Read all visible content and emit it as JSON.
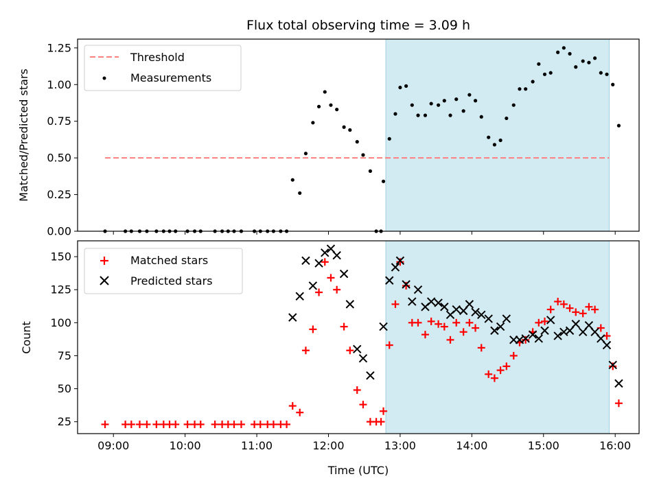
{
  "chart_data": {
    "type": "scatter",
    "title": "Flux total observing time = 3.09 h",
    "xlabel": "Time (UTC)",
    "xlim": [
      "08:30",
      "16:20"
    ],
    "x_ticks": [
      "09:00",
      "10:00",
      "11:00",
      "12:00",
      "13:00",
      "14:00",
      "15:00",
      "16:00"
    ],
    "shaded_region": {
      "start": "12:48",
      "end": "15:55",
      "color": "#add8e6"
    },
    "panels": [
      {
        "id": "ratio",
        "ylabel": "Matched/Predicted stars",
        "ylim": [
          0,
          1.31
        ],
        "y_ticks": [
          "0.00",
          "0.25",
          "0.50",
          "0.75",
          "1.00",
          "1.25"
        ],
        "y_tick_values": [
          0,
          0.25,
          0.5,
          0.75,
          1.0,
          1.25
        ],
        "legend_position": "upper-left",
        "threshold": {
          "name": "Threshold",
          "value": 0.5,
          "x_start": "08:53",
          "x_end": "15:55",
          "color": "#ff7f7f"
        },
        "series": [
          {
            "name": "Measurements",
            "color": "#000000",
            "marker": "dot",
            "points": [
              [
                "08:53",
                0
              ],
              [
                "09:10",
                0
              ],
              [
                "09:15",
                0
              ],
              [
                "09:22",
                0
              ],
              [
                "09:28",
                0
              ],
              [
                "09:36",
                0
              ],
              [
                "09:42",
                0
              ],
              [
                "09:47",
                0
              ],
              [
                "09:52",
                0
              ],
              [
                "10:02",
                0
              ],
              [
                "10:08",
                0
              ],
              [
                "10:13",
                0
              ],
              [
                "10:25",
                0
              ],
              [
                "10:31",
                0
              ],
              [
                "10:36",
                0
              ],
              [
                "10:41",
                0
              ],
              [
                "10:47",
                0
              ],
              [
                "10:58",
                0
              ],
              [
                "11:03",
                0
              ],
              [
                "11:09",
                0
              ],
              [
                "11:14",
                0
              ],
              [
                "11:20",
                0
              ],
              [
                "11:25",
                0
              ],
              [
                "11:30",
                0.35
              ],
              [
                "11:36",
                0.26
              ],
              [
                "11:41",
                0.53
              ],
              [
                "11:47",
                0.74
              ],
              [
                "11:52",
                0.85
              ],
              [
                "11:57",
                0.95
              ],
              [
                "12:02",
                0.86
              ],
              [
                "12:07",
                0.83
              ],
              [
                "12:13",
                0.71
              ],
              [
                "12:18",
                0.69
              ],
              [
                "12:24",
                0.61
              ],
              [
                "12:29",
                0.52
              ],
              [
                "12:35",
                0.41
              ],
              [
                "12:40",
                0
              ],
              [
                "12:44",
                0
              ],
              [
                "12:46",
                0.34
              ],
              [
                "12:51",
                0.63
              ],
              [
                "12:56",
                0.8
              ],
              [
                "13:00",
                0.98
              ],
              [
                "13:05",
                0.99
              ],
              [
                "13:10",
                0.86
              ],
              [
                "13:15",
                0.79
              ],
              [
                "13:21",
                0.79
              ],
              [
                "13:26",
                0.87
              ],
              [
                "13:32",
                0.86
              ],
              [
                "13:37",
                0.89
              ],
              [
                "13:42",
                0.79
              ],
              [
                "13:47",
                0.9
              ],
              [
                "13:53",
                0.82
              ],
              [
                "13:58",
                0.93
              ],
              [
                "14:03",
                0.89
              ],
              [
                "14:08",
                0.78
              ],
              [
                "14:14",
                0.64
              ],
              [
                "14:19",
                0.59
              ],
              [
                "14:24",
                0.62
              ],
              [
                "14:29",
                0.77
              ],
              [
                "14:35",
                0.86
              ],
              [
                "14:40",
                0.97
              ],
              [
                "14:45",
                0.97
              ],
              [
                "14:51",
                1.02
              ],
              [
                "14:56",
                1.14
              ],
              [
                "15:01",
                1.07
              ],
              [
                "15:06",
                1.08
              ],
              [
                "15:12",
                1.22
              ],
              [
                "15:17",
                1.25
              ],
              [
                "15:22",
                1.21
              ],
              [
                "15:27",
                1.12
              ],
              [
                "15:33",
                1.16
              ],
              [
                "15:38",
                1.15
              ],
              [
                "15:43",
                1.18
              ],
              [
                "15:48",
                1.08
              ],
              [
                "15:53",
                1.07
              ],
              [
                "15:58",
                1.0
              ],
              [
                "16:03",
                0.72
              ]
            ]
          }
        ]
      },
      {
        "id": "counts",
        "ylabel": "Count",
        "ylim": [
          16,
          162
        ],
        "y_ticks": [
          "25",
          "50",
          "75",
          "100",
          "125",
          "150"
        ],
        "y_tick_values": [
          25,
          50,
          75,
          100,
          125,
          150
        ],
        "legend_position": "upper-left",
        "series": [
          {
            "name": "Matched stars",
            "color": "#ff0000",
            "marker": "plus",
            "points": [
              [
                "08:53",
                23
              ],
              [
                "09:10",
                23
              ],
              [
                "09:15",
                23
              ],
              [
                "09:22",
                23
              ],
              [
                "09:28",
                23
              ],
              [
                "09:36",
                23
              ],
              [
                "09:42",
                23
              ],
              [
                "09:47",
                23
              ],
              [
                "09:52",
                23
              ],
              [
                "10:02",
                23
              ],
              [
                "10:08",
                23
              ],
              [
                "10:13",
                23
              ],
              [
                "10:25",
                23
              ],
              [
                "10:31",
                23
              ],
              [
                "10:36",
                23
              ],
              [
                "10:41",
                23
              ],
              [
                "10:47",
                23
              ],
              [
                "10:58",
                23
              ],
              [
                "11:03",
                23
              ],
              [
                "11:09",
                23
              ],
              [
                "11:14",
                23
              ],
              [
                "11:20",
                23
              ],
              [
                "11:25",
                23
              ],
              [
                "11:30",
                37
              ],
              [
                "11:36",
                32
              ],
              [
                "11:41",
                79
              ],
              [
                "11:47",
                95
              ],
              [
                "11:52",
                123
              ],
              [
                "11:57",
                146
              ],
              [
                "12:02",
                134
              ],
              [
                "12:07",
                125
              ],
              [
                "12:13",
                97
              ],
              [
                "12:18",
                79
              ],
              [
                "12:24",
                49
              ],
              [
                "12:29",
                38
              ],
              [
                "12:35",
                25
              ],
              [
                "12:40",
                25
              ],
              [
                "12:44",
                25
              ],
              [
                "12:46",
                33
              ],
              [
                "12:51",
                83
              ],
              [
                "12:56",
                114
              ],
              [
                "13:00",
                146
              ],
              [
                "13:05",
                128
              ],
              [
                "13:10",
                100
              ],
              [
                "13:15",
                100
              ],
              [
                "13:21",
                91
              ],
              [
                "13:26",
                101
              ],
              [
                "13:32",
                99
              ],
              [
                "13:37",
                97
              ],
              [
                "13:42",
                87
              ],
              [
                "13:47",
                100
              ],
              [
                "13:53",
                93
              ],
              [
                "13:58",
                100
              ],
              [
                "14:03",
                96
              ],
              [
                "14:08",
                81
              ],
              [
                "14:14",
                61
              ],
              [
                "14:19",
                58
              ],
              [
                "14:24",
                64
              ],
              [
                "14:29",
                67
              ],
              [
                "14:35",
                75
              ],
              [
                "14:40",
                85
              ],
              [
                "14:45",
                87
              ],
              [
                "14:51",
                93
              ],
              [
                "14:56",
                100
              ],
              [
                "15:01",
                101
              ],
              [
                "15:06",
                110
              ],
              [
                "15:12",
                116
              ],
              [
                "15:17",
                114
              ],
              [
                "15:22",
                111
              ],
              [
                "15:27",
                108
              ],
              [
                "15:33",
                107
              ],
              [
                "15:38",
                112
              ],
              [
                "15:43",
                110
              ],
              [
                "15:48",
                96
              ],
              [
                "15:53",
                90
              ],
              [
                "15:58",
                67
              ],
              [
                "16:03",
                39
              ]
            ]
          },
          {
            "name": "Predicted stars",
            "color": "#000000",
            "marker": "x",
            "points": [
              [
                "11:30",
                104
              ],
              [
                "11:36",
                120
              ],
              [
                "11:41",
                147
              ],
              [
                "11:47",
                128
              ],
              [
                "11:52",
                145
              ],
              [
                "11:57",
                153
              ],
              [
                "12:02",
                156
              ],
              [
                "12:07",
                151
              ],
              [
                "12:13",
                137
              ],
              [
                "12:18",
                114
              ],
              [
                "12:24",
                80
              ],
              [
                "12:29",
                73
              ],
              [
                "12:35",
                60
              ],
              [
                "12:46",
                97
              ],
              [
                "12:51",
                132
              ],
              [
                "12:56",
                142
              ],
              [
                "13:00",
                147
              ],
              [
                "13:05",
                129
              ],
              [
                "13:10",
                116
              ],
              [
                "13:15",
                125
              ],
              [
                "13:21",
                112
              ],
              [
                "13:26",
                116
              ],
              [
                "13:32",
                115
              ],
              [
                "13:37",
                112
              ],
              [
                "13:42",
                106
              ],
              [
                "13:47",
                110
              ],
              [
                "13:53",
                109
              ],
              [
                "13:58",
                114
              ],
              [
                "14:03",
                108
              ],
              [
                "14:08",
                106
              ],
              [
                "14:14",
                103
              ],
              [
                "14:19",
                94
              ],
              [
                "14:24",
                97
              ],
              [
                "14:29",
                103
              ],
              [
                "14:35",
                87
              ],
              [
                "14:40",
                87
              ],
              [
                "14:45",
                88
              ],
              [
                "14:51",
                91
              ],
              [
                "14:56",
                88
              ],
              [
                "15:01",
                94
              ],
              [
                "15:06",
                102
              ],
              [
                "15:12",
                90
              ],
              [
                "15:17",
                93
              ],
              [
                "15:22",
                94
              ],
              [
                "15:27",
                99
              ],
              [
                "15:33",
                93
              ],
              [
                "15:38",
                98
              ],
              [
                "15:43",
                93
              ],
              [
                "15:48",
                88
              ],
              [
                "15:53",
                83
              ],
              [
                "15:58",
                68
              ],
              [
                "16:03",
                54
              ]
            ]
          }
        ]
      }
    ]
  }
}
